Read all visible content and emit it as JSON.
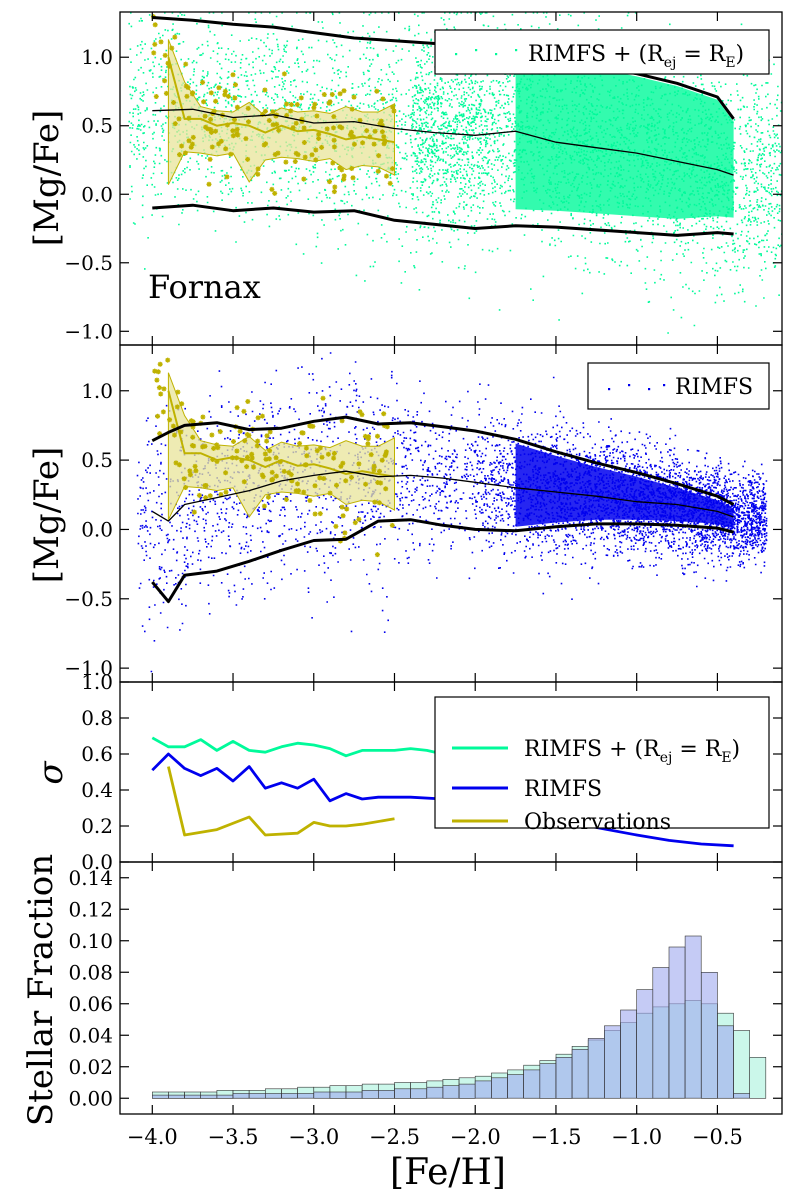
{
  "colors": {
    "rimfs_re": "#00FA9A",
    "rimfs": "#0000EE",
    "observations": "#BFB200",
    "obs_fill": "#E8E49A",
    "median": "#000000",
    "hist_green": "#A8F2DC",
    "hist_blue": "#9EA8EE"
  },
  "chart_data": [
    {
      "id": "panel1",
      "type": "scatter",
      "ylabel": "[Mg/Fe]",
      "xlim": [
        -4.2,
        -0.1
      ],
      "ylim": [
        -1.1,
        1.33
      ],
      "yticks": [
        -1.0,
        -0.5,
        0.0,
        0.5,
        1.0
      ],
      "ytick_labels": [
        "−1.0",
        "−0.5",
        "0.0",
        "0.5",
        "1.0"
      ],
      "annotation": "Fornax",
      "legend": {
        "position": "top-right",
        "entries": [
          "RIMFS + (R_ej = R_E)"
        ]
      },
      "legend_text": {
        "main": "RIMFS + (R",
        "sub1": "ej",
        "mid": " = R",
        "sub2": "E",
        "end": ")"
      },
      "x_grid": [
        -4.0,
        -3.75,
        -3.5,
        -3.25,
        -3.0,
        -2.75,
        -2.5,
        -2.25,
        -2.0,
        -1.75,
        -1.5,
        -1.25,
        -1.0,
        -0.75,
        -0.5,
        -0.4
      ],
      "upper": [
        1.29,
        1.27,
        1.24,
        1.22,
        1.18,
        1.14,
        1.12,
        1.1,
        1.07,
        1.03,
        0.99,
        0.94,
        0.88,
        0.81,
        0.71,
        0.55
      ],
      "median": [
        0.61,
        0.62,
        0.56,
        0.58,
        0.52,
        0.53,
        0.48,
        0.45,
        0.43,
        0.46,
        0.38,
        0.34,
        0.3,
        0.24,
        0.18,
        0.14
      ],
      "lower": [
        -0.1,
        -0.08,
        -0.12,
        -0.1,
        -0.13,
        -0.12,
        -0.19,
        -0.22,
        -0.25,
        -0.23,
        -0.24,
        -0.26,
        -0.28,
        -0.3,
        -0.28,
        -0.29
      ],
      "obs": {
        "x": [
          -3.9,
          -3.8,
          -3.7,
          -3.6,
          -3.5,
          -3.4,
          -3.3,
          -3.2,
          -3.1,
          -3.0,
          -2.9,
          -2.8,
          -2.7,
          -2.6,
          -2.5
        ],
        "mean": [
          1.0,
          0.55,
          0.55,
          0.5,
          0.52,
          0.5,
          0.45,
          0.5,
          0.46,
          0.47,
          0.44,
          0.4,
          0.42,
          0.4,
          0.38
        ],
        "hi": [
          1.13,
          0.82,
          0.64,
          0.61,
          0.6,
          0.67,
          0.57,
          0.63,
          0.6,
          0.61,
          0.59,
          0.64,
          0.6,
          0.6,
          0.66
        ],
        "lo": [
          0.07,
          0.31,
          0.3,
          0.28,
          0.3,
          0.09,
          0.25,
          0.27,
          0.26,
          0.24,
          0.26,
          0.18,
          0.21,
          0.2,
          0.14
        ]
      }
    },
    {
      "id": "panel2",
      "type": "scatter",
      "ylabel": "[Mg/Fe]",
      "xlim": [
        -4.2,
        -0.1
      ],
      "ylim": [
        -1.1,
        1.33
      ],
      "yticks": [
        -1.0,
        -0.5,
        0.0,
        0.5,
        1.0
      ],
      "ytick_labels": [
        "−1.0",
        "−0.5",
        "0.0",
        "0.5",
        "1.0"
      ],
      "legend": {
        "position": "top-right",
        "entries": [
          "RIMFS"
        ]
      },
      "x_grid": [
        -4.0,
        -3.9,
        -3.8,
        -3.6,
        -3.4,
        -3.2,
        -3.0,
        -2.8,
        -2.6,
        -2.4,
        -2.2,
        -2.0,
        -1.75,
        -1.5,
        -1.25,
        -1.0,
        -0.75,
        -0.5,
        -0.4
      ],
      "upper": [
        0.64,
        0.7,
        0.75,
        0.77,
        0.72,
        0.73,
        0.78,
        0.81,
        0.76,
        0.77,
        0.74,
        0.71,
        0.65,
        0.56,
        0.48,
        0.41,
        0.33,
        0.24,
        0.18
      ],
      "median": [
        0.13,
        0.06,
        0.18,
        0.23,
        0.28,
        0.35,
        0.39,
        0.42,
        0.38,
        0.39,
        0.37,
        0.34,
        0.3,
        0.27,
        0.24,
        0.2,
        0.18,
        0.13,
        0.09
      ],
      "lower": [
        -0.38,
        -0.52,
        -0.33,
        -0.3,
        -0.23,
        -0.15,
        -0.08,
        -0.07,
        0.06,
        0.07,
        0.03,
        0.0,
        -0.01,
        0.02,
        0.04,
        0.04,
        0.03,
        0.01,
        -0.02
      ],
      "obs": {
        "x": [
          -3.9,
          -3.8,
          -3.7,
          -3.6,
          -3.5,
          -3.4,
          -3.3,
          -3.2,
          -3.1,
          -3.0,
          -2.9,
          -2.8,
          -2.7,
          -2.6,
          -2.5
        ],
        "mean": [
          1.0,
          0.55,
          0.55,
          0.5,
          0.52,
          0.5,
          0.45,
          0.5,
          0.46,
          0.47,
          0.44,
          0.4,
          0.42,
          0.4,
          0.38
        ],
        "hi": [
          1.13,
          0.82,
          0.64,
          0.61,
          0.6,
          0.67,
          0.57,
          0.63,
          0.6,
          0.61,
          0.59,
          0.64,
          0.6,
          0.6,
          0.66
        ],
        "lo": [
          0.07,
          0.31,
          0.3,
          0.28,
          0.3,
          0.09,
          0.25,
          0.27,
          0.26,
          0.24,
          0.26,
          0.18,
          0.21,
          0.2,
          0.14
        ]
      }
    },
    {
      "id": "panel3",
      "type": "line",
      "ylabel": "σ",
      "xlim": [
        -4.2,
        -0.1
      ],
      "ylim": [
        0.0,
        1.0
      ],
      "yticks": [
        0.0,
        0.2,
        0.4,
        0.6,
        0.8,
        1.0
      ],
      "ytick_labels": [
        "0.0",
        "0.2",
        "0.4",
        "0.6",
        "0.8",
        "1.0"
      ],
      "legend": {
        "position": "top-right",
        "entries": [
          "RIMFS + (R_ej = R_E)",
          "RIMFS",
          "Observations"
        ]
      },
      "legend_labels": [
        "RIMFS",
        "Observations"
      ],
      "series": [
        {
          "name": "RIMFS + (R_ej = R_E)",
          "x": [
            -4.0,
            -3.9,
            -3.8,
            -3.7,
            -3.6,
            -3.5,
            -3.4,
            -3.3,
            -3.2,
            -3.1,
            -3.0,
            -2.9,
            -2.8,
            -2.7,
            -2.6,
            -2.5,
            -2.4,
            -2.3,
            -2.2
          ],
          "values": [
            0.69,
            0.64,
            0.64,
            0.68,
            0.62,
            0.67,
            0.62,
            0.61,
            0.64,
            0.66,
            0.65,
            0.63,
            0.59,
            0.62,
            0.62,
            0.62,
            0.63,
            0.62,
            0.6
          ]
        },
        {
          "name": "RIMFS",
          "x": [
            -4.0,
            -3.9,
            -3.8,
            -3.7,
            -3.6,
            -3.5,
            -3.4,
            -3.3,
            -3.2,
            -3.1,
            -3.0,
            -2.9,
            -2.8,
            -2.7,
            -2.6,
            -2.5,
            -2.4,
            -2.2,
            -1.0,
            -0.8,
            -0.6,
            -0.4
          ],
          "values": [
            0.51,
            0.6,
            0.52,
            0.48,
            0.52,
            0.45,
            0.53,
            0.41,
            0.44,
            0.41,
            0.46,
            0.34,
            0.38,
            0.35,
            0.36,
            0.36,
            0.36,
            0.35,
            0.15,
            0.12,
            0.1,
            0.09
          ]
        },
        {
          "name": "Observations",
          "x": [
            -3.9,
            -3.8,
            -3.6,
            -3.4,
            -3.3,
            -3.1,
            -3.0,
            -2.9,
            -2.8,
            -2.7,
            -2.5
          ],
          "values": [
            0.53,
            0.15,
            0.18,
            0.25,
            0.15,
            0.16,
            0.22,
            0.2,
            0.2,
            0.21,
            0.24
          ]
        }
      ]
    },
    {
      "id": "panel4",
      "type": "bar",
      "ylabel": "Stellar Fraction",
      "xlabel": "[Fe/H]",
      "xlim": [
        -4.2,
        -0.1
      ],
      "ylim": [
        -0.01,
        0.15
      ],
      "yticks": [
        0.0,
        0.02,
        0.04,
        0.06,
        0.08,
        0.1,
        0.12,
        0.14
      ],
      "ytick_labels": [
        "0.00",
        "0.02",
        "0.04",
        "0.06",
        "0.08",
        "0.10",
        "0.12",
        "0.14"
      ],
      "xticks": [
        -4.0,
        -3.5,
        -3.0,
        -2.5,
        -2.0,
        -1.5,
        -1.0,
        -0.5
      ],
      "xtick_labels": [
        "−4.0",
        "−3.5",
        "−3.0",
        "−2.5",
        "−2.0",
        "−1.5",
        "−1.0",
        "−0.5"
      ],
      "bin_start": -4.0,
      "bin_width": 0.1,
      "series": [
        {
          "name": "RIMFS + (R_ej = R_E)",
          "values": [
            0.004,
            0.004,
            0.004,
            0.004,
            0.005,
            0.005,
            0.005,
            0.006,
            0.006,
            0.007,
            0.007,
            0.008,
            0.008,
            0.009,
            0.009,
            0.01,
            0.01,
            0.011,
            0.012,
            0.013,
            0.014,
            0.016,
            0.018,
            0.021,
            0.024,
            0.028,
            0.033,
            0.037,
            0.043,
            0.048,
            0.054,
            0.058,
            0.06,
            0.062,
            0.06,
            0.054,
            0.043,
            0.026
          ]
        },
        {
          "name": "RIMFS",
          "values": [
            0.002,
            0.002,
            0.002,
            0.002,
            0.002,
            0.003,
            0.003,
            0.003,
            0.003,
            0.003,
            0.004,
            0.004,
            0.004,
            0.005,
            0.005,
            0.006,
            0.006,
            0.007,
            0.008,
            0.009,
            0.011,
            0.013,
            0.015,
            0.018,
            0.022,
            0.026,
            0.031,
            0.038,
            0.046,
            0.056,
            0.069,
            0.083,
            0.096,
            0.103,
            0.08,
            0.046,
            0.003,
            0.0
          ]
        }
      ]
    }
  ]
}
